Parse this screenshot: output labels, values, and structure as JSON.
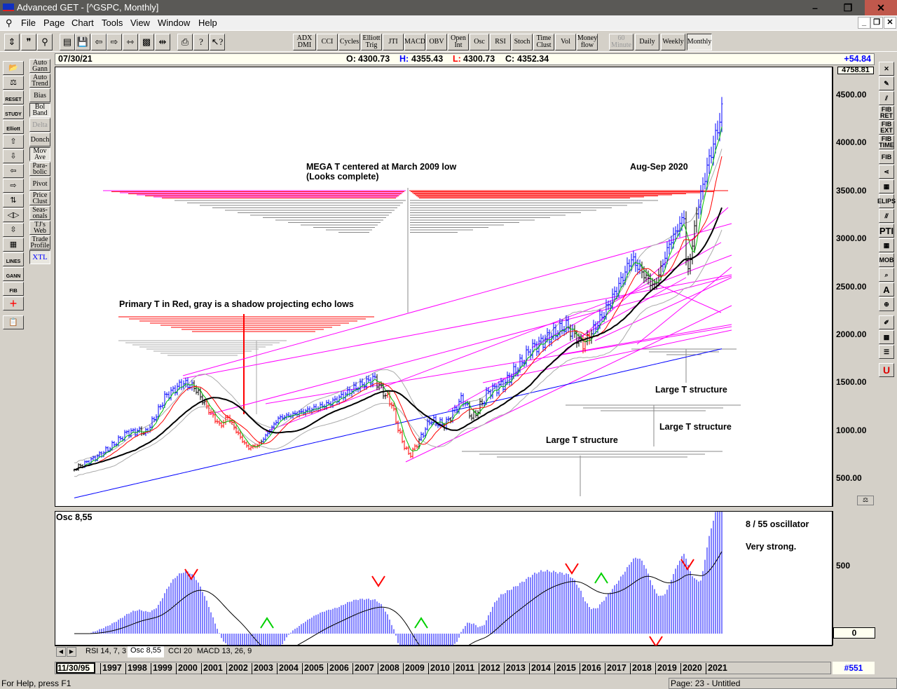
{
  "window": {
    "title": "Advanced GET - [^GSPC, Monthly]"
  },
  "menu": [
    "File",
    "Page",
    "Chart",
    "Tools",
    "View",
    "Window",
    "Help"
  ],
  "toolbar": {
    "indicators": [
      "ADX DMI",
      "CCI",
      "Cycles",
      "Elliott Trig",
      "JTI",
      "MACD",
      "OBV",
      "Open Int",
      "Osc",
      "RSI",
      "Stoch",
      "Time Clust",
      "Vol",
      "Money flow"
    ],
    "timeframes": [
      "60 Minute",
      "Daily",
      "Weekly",
      "Monthly"
    ]
  },
  "studies": [
    "Auto Gann",
    "Auto Trend",
    "Bias",
    "Bol Band",
    "Delta",
    "Donch",
    "Mov Ave",
    "Para-bolic",
    "Pivot",
    "Price Clust",
    "Seas-onals",
    "TJ's Web",
    "Trade Profile",
    "XTL"
  ],
  "left_tools": [
    "open-folder",
    "scale",
    "RESET",
    "STUDY",
    "Elliott",
    "arrow-up",
    "arrow-down",
    "arrow-left",
    "arrow-right",
    "compress",
    "expand-horizontal",
    "expand-vertical",
    "grid",
    "LINES",
    "GANN",
    "FIB",
    "crosshair",
    "properties"
  ],
  "right_tools": [
    "close",
    "pencil",
    "parallel-lines",
    "FIB RET",
    "FIB EXT",
    "FIB TIME",
    "FIB arc",
    "fan",
    "grid",
    "ELIPS",
    "channel",
    "PTI",
    "table",
    "MOB",
    "zoom-time",
    "A",
    "zoom",
    "eraser",
    "pattern",
    "list",
    "magnet"
  ],
  "header": {
    "date": "07/30/21",
    "open_label": "O:",
    "open": "4300.73",
    "high_label": "H:",
    "high": "4355.43",
    "low_label": "L:",
    "low": "4300.73",
    "close_label": "C:",
    "close": "4352.34",
    "change": "+54.84"
  },
  "price_axis": {
    "top_value": "4758.81",
    "ticks": [
      "4500.00",
      "4000.00",
      "3500.00",
      "3000.00",
      "2500.00",
      "2000.00",
      "1500.00",
      "1000.00",
      "500.00"
    ]
  },
  "annotations": {
    "mega_t": "MEGA T centered at March 2009 low\n(Looks complete)",
    "aug_sep": "Aug-Sep 2020",
    "primary_t": "Primary T in Red, gray is a shadow projecting echo lows",
    "large_t1": "Large T structure",
    "large_t2": "Large T structure",
    "large_t3": "Large T structure"
  },
  "oscillator": {
    "title": "Osc 8,55",
    "note1": "8 / 55 oscillator",
    "note2": "Very strong.",
    "ticks": [
      "500",
      "0"
    ]
  },
  "tabs": [
    "RSI 14, 7, 3",
    "Osc 8,55",
    "CCI 20",
    "MACD 13, 26, 9"
  ],
  "time_axis": {
    "start": "11/30/95",
    "years": [
      "1997",
      "1998",
      "1999",
      "2000",
      "2001",
      "2002",
      "2003",
      "2004",
      "2005",
      "2006",
      "2007",
      "2008",
      "2009",
      "2010",
      "2011",
      "2012",
      "2013",
      "2014",
      "2015",
      "2016",
      "2017",
      "2018",
      "2019",
      "2020",
      "2021"
    ],
    "bar_count": "#551"
  },
  "status": {
    "help": "For Help, press F1",
    "page": "Page: 23 - Untitled"
  },
  "chart_data": {
    "type": "candlestick",
    "symbol": "^GSPC",
    "interval": "Monthly",
    "ylim": [
      300,
      4758.81
    ],
    "price_keypoints": [
      [
        1995.9,
        600
      ],
      [
        1997,
        760
      ],
      [
        1998,
        980
      ],
      [
        1998.6,
        1000
      ],
      [
        1998.7,
        960
      ],
      [
        1999.5,
        1350
      ],
      [
        2000.2,
        1500
      ],
      [
        2000.7,
        1450
      ],
      [
        2001,
        1320
      ],
      [
        2001.7,
        1050
      ],
      [
        2002,
        1150
      ],
      [
        2002.8,
        820
      ],
      [
        2003.2,
        850
      ],
      [
        2004,
        1130
      ],
      [
        2005,
        1200
      ],
      [
        2006,
        1280
      ],
      [
        2007,
        1440
      ],
      [
        2007.8,
        1550
      ],
      [
        2008.5,
        1280
      ],
      [
        2008.9,
        900
      ],
      [
        2009.2,
        740
      ],
      [
        2010,
        1110
      ],
      [
        2010.6,
        1060
      ],
      [
        2011.3,
        1350
      ],
      [
        2011.7,
        1130
      ],
      [
        2012.3,
        1400
      ],
      [
        2013,
        1500
      ],
      [
        2014,
        1850
      ],
      [
        2015.4,
        2100
      ],
      [
        2015.9,
        1950
      ],
      [
        2016.1,
        1900
      ],
      [
        2017,
        2270
      ],
      [
        2018,
        2800
      ],
      [
        2018.9,
        2500
      ],
      [
        2019.5,
        2950
      ],
      [
        2020.1,
        3250
      ],
      [
        2020.2,
        2580
      ],
      [
        2020.6,
        3300
      ],
      [
        2021,
        3750
      ],
      [
        2021.6,
        4352.34
      ]
    ]
  },
  "colors": {
    "up": "#0000ff",
    "down": "#ff0000",
    "trend": "#ff00ff",
    "accent": "#0000ff"
  }
}
